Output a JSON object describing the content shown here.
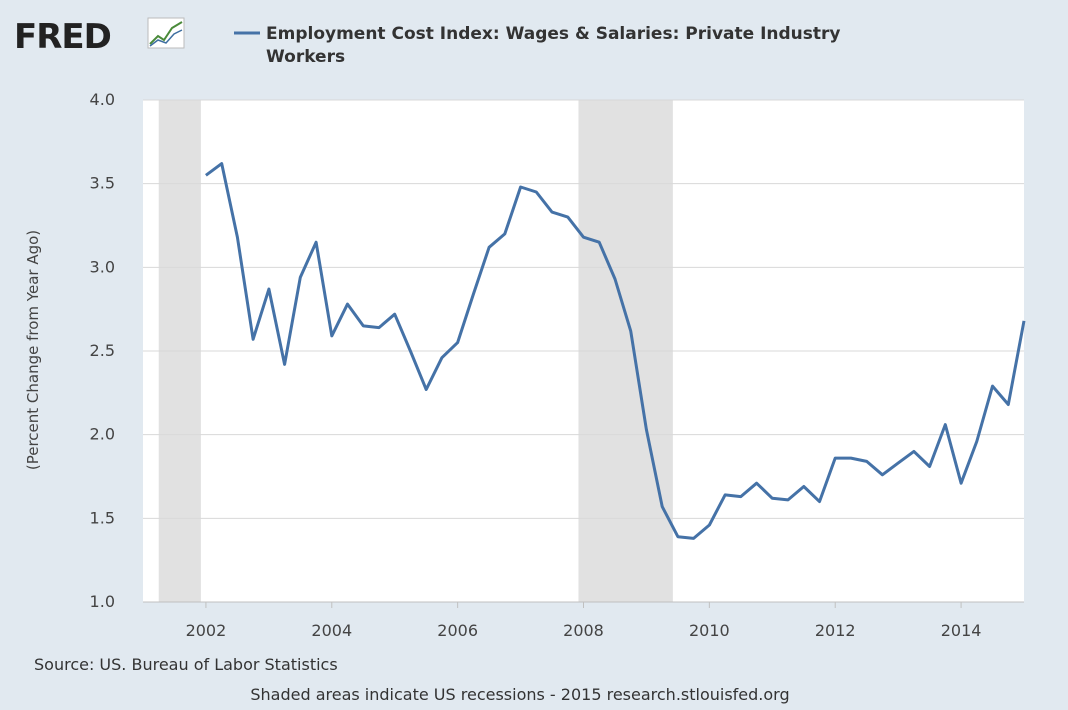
{
  "brand": {
    "logo_text": "FRED"
  },
  "colors": {
    "background": "#e1e9f0",
    "plot_background": "#ffffff",
    "series": "#4572a7",
    "recession_band": "#e1e1e1",
    "gridline": "#d8d8d8"
  },
  "footer": {
    "source": "Source: US. Bureau of Labor Statistics",
    "note": "Shaded areas indicate US recessions - 2015 research.stlouisfed.org"
  },
  "chart_data": {
    "type": "line",
    "series": [
      {
        "name": "Employment Cost Index: Wages & Salaries: Private Industry Workers",
        "legend_lines": [
          "Employment Cost Index: Wages & Salaries: Private Industry",
          "Workers"
        ],
        "x": [
          2002.0,
          2002.25,
          2002.5,
          2002.75,
          2003.0,
          2003.25,
          2003.5,
          2003.75,
          2004.0,
          2004.25,
          2004.5,
          2004.75,
          2005.0,
          2005.25,
          2005.5,
          2005.75,
          2006.0,
          2006.25,
          2006.5,
          2006.75,
          2007.0,
          2007.25,
          2007.5,
          2007.75,
          2008.0,
          2008.25,
          2008.5,
          2008.75,
          2009.0,
          2009.25,
          2009.5,
          2009.75,
          2010.0,
          2010.25,
          2010.5,
          2010.75,
          2011.0,
          2011.25,
          2011.5,
          2011.75,
          2012.0,
          2012.25,
          2012.5,
          2012.75,
          2013.0,
          2013.25,
          2013.5,
          2013.75,
          2014.0,
          2014.25,
          2014.5,
          2014.75,
          2015.0
        ],
        "values": [
          3.55,
          3.62,
          3.18,
          2.57,
          2.87,
          2.42,
          2.94,
          3.15,
          2.59,
          2.78,
          2.65,
          2.64,
          2.72,
          2.5,
          2.27,
          2.46,
          2.55,
          2.84,
          3.12,
          3.2,
          3.48,
          3.45,
          3.33,
          3.3,
          3.18,
          3.15,
          2.93,
          2.62,
          2.03,
          1.57,
          1.39,
          1.38,
          1.46,
          1.64,
          1.63,
          1.71,
          1.62,
          1.61,
          1.69,
          1.6,
          1.86,
          1.86,
          1.84,
          1.76,
          1.83,
          1.9,
          1.81,
          2.06,
          1.71,
          1.96,
          2.29,
          2.18,
          2.68
        ]
      }
    ],
    "ylabel": "(Percent Change from Year Ago)",
    "xlabel": "",
    "xlim": [
      2001.0,
      2015.0
    ],
    "ylim": [
      1.0,
      4.0
    ],
    "yticks": [
      "1.0",
      "1.5",
      "2.0",
      "2.5",
      "3.0",
      "3.5",
      "4.0"
    ],
    "yticks_values": [
      1.0,
      1.5,
      2.0,
      2.5,
      3.0,
      3.5,
      4.0
    ],
    "xticks": [
      "2002",
      "2004",
      "2006",
      "2008",
      "2010",
      "2012",
      "2014"
    ],
    "xticks_values": [
      2002,
      2004,
      2006,
      2008,
      2010,
      2012,
      2014
    ],
    "recessions": [
      [
        2001.25,
        2001.92
      ],
      [
        2007.92,
        2009.42
      ]
    ],
    "grid": "horizontal",
    "legend_position": "top"
  }
}
